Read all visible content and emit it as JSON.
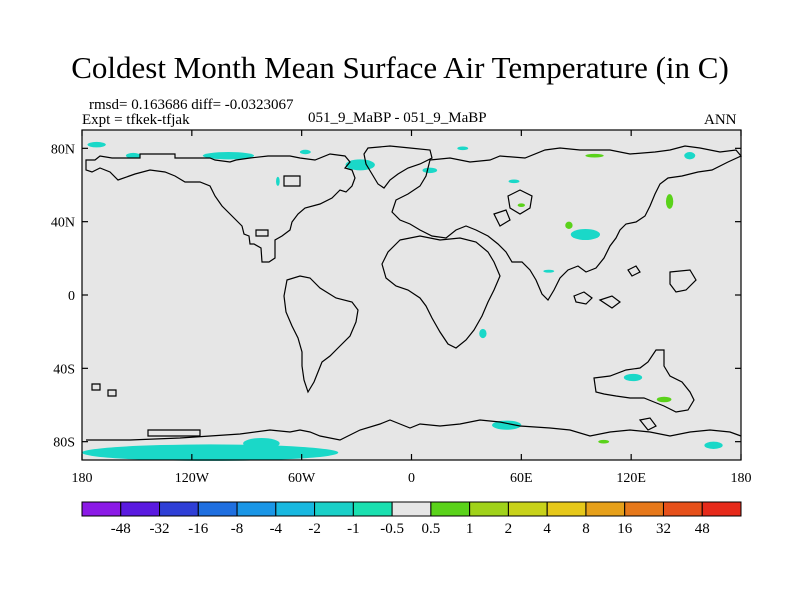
{
  "title": "Coldest Month Mean Surface Air Temperature (in C)",
  "stats": "rmsd= 0.163686 diff= -0.0323067",
  "expt": "Expt = tfkek-tfjak",
  "subtitle": "051_9_MaBP - 051_9_MaBP",
  "period": "ANN",
  "y_ticks": [
    {
      "label": "80N",
      "lat": 80
    },
    {
      "label": "40N",
      "lat": 40
    },
    {
      "label": "0",
      "lat": 0
    },
    {
      "label": "40S",
      "lat": -40
    },
    {
      "label": "80S",
      "lat": -80
    }
  ],
  "x_ticks": [
    {
      "label": "180",
      "lon": -180
    },
    {
      "label": "120W",
      "lon": -120
    },
    {
      "label": "60W",
      "lon": -60
    },
    {
      "label": "0",
      "lon": 0
    },
    {
      "label": "60E",
      "lon": 60
    },
    {
      "label": "120E",
      "lon": 120
    },
    {
      "label": "180",
      "lon": 180
    }
  ],
  "colorbar": {
    "colors": [
      "#8b1ae6",
      "#5a1ae0",
      "#2f3fd6",
      "#1f6fe0",
      "#1a96e6",
      "#18b8e0",
      "#1ad0c8",
      "#1ae0b0",
      "#e6e6e6",
      "#5ad21a",
      "#a0d21a",
      "#c8d21a",
      "#e6c81a",
      "#e6a01a",
      "#e6781a",
      "#e6501a",
      "#e62a1a"
    ],
    "labels": [
      "-48",
      "-32",
      "-16",
      "-8",
      "-4",
      "-2",
      "-1",
      "-0.5",
      "0.5",
      "1",
      "2",
      "4",
      "8",
      "16",
      "32",
      "48"
    ]
  },
  "map_colors": {
    "background": "#e6e6e6",
    "negative": "#1ad8c8",
    "positive": "#5ad21a",
    "coast": "#000000"
  },
  "anomalies": [
    {
      "lon": -172,
      "lat": 82,
      "rx": 5,
      "ry": 1.5,
      "sign": "neg"
    },
    {
      "lon": -152,
      "lat": 76,
      "rx": 4,
      "ry": 1.5,
      "sign": "neg"
    },
    {
      "lon": -100,
      "lat": 76,
      "rx": 14,
      "ry": 2,
      "sign": "neg"
    },
    {
      "lon": -58,
      "lat": 78,
      "rx": 3,
      "ry": 1.2,
      "sign": "neg"
    },
    {
      "lon": -28,
      "lat": 71,
      "rx": 8,
      "ry": 3,
      "sign": "neg"
    },
    {
      "lon": -73,
      "lat": 62,
      "rx": 1,
      "ry": 2.5,
      "sign": "neg"
    },
    {
      "lon": 10,
      "lat": 68,
      "rx": 4,
      "ry": 1.5,
      "sign": "neg"
    },
    {
      "lon": 28,
      "lat": 80,
      "rx": 3,
      "ry": 1,
      "sign": "neg"
    },
    {
      "lon": 56,
      "lat": 62,
      "rx": 3,
      "ry": 1,
      "sign": "neg"
    },
    {
      "lon": 100,
      "lat": 76,
      "rx": 5,
      "ry": 1,
      "sign": "pos"
    },
    {
      "lon": 152,
      "lat": 76,
      "rx": 3,
      "ry": 2,
      "sign": "neg"
    },
    {
      "lon": 141,
      "lat": 51,
      "rx": 2,
      "ry": 4,
      "sign": "pos"
    },
    {
      "lon": 95,
      "lat": 33,
      "rx": 8,
      "ry": 3,
      "sign": "neg"
    },
    {
      "lon": 86,
      "lat": 38,
      "rx": 2,
      "ry": 2,
      "sign": "pos"
    },
    {
      "lon": 60,
      "lat": 49,
      "rx": 2,
      "ry": 1,
      "sign": "pos"
    },
    {
      "lon": 75,
      "lat": 13,
      "rx": 3,
      "ry": 0.8,
      "sign": "neg"
    },
    {
      "lon": 39,
      "lat": -21,
      "rx": 2,
      "ry": 2.5,
      "sign": "neg"
    },
    {
      "lon": 121,
      "lat": -45,
      "rx": 5,
      "ry": 2,
      "sign": "neg"
    },
    {
      "lon": 138,
      "lat": -57,
      "rx": 4,
      "ry": 1.5,
      "sign": "pos"
    },
    {
      "lon": 52,
      "lat": -71,
      "rx": 8,
      "ry": 2.5,
      "sign": "neg"
    },
    {
      "lon": 105,
      "lat": -80,
      "rx": 3,
      "ry": 1,
      "sign": "pos"
    },
    {
      "lon": 165,
      "lat": -82,
      "rx": 5,
      "ry": 2,
      "sign": "neg"
    },
    {
      "lon": -110,
      "lat": -86,
      "rx": 70,
      "ry": 4.5,
      "sign": "neg"
    },
    {
      "lon": -82,
      "lat": -81,
      "rx": 10,
      "ry": 3,
      "sign": "neg"
    }
  ]
}
